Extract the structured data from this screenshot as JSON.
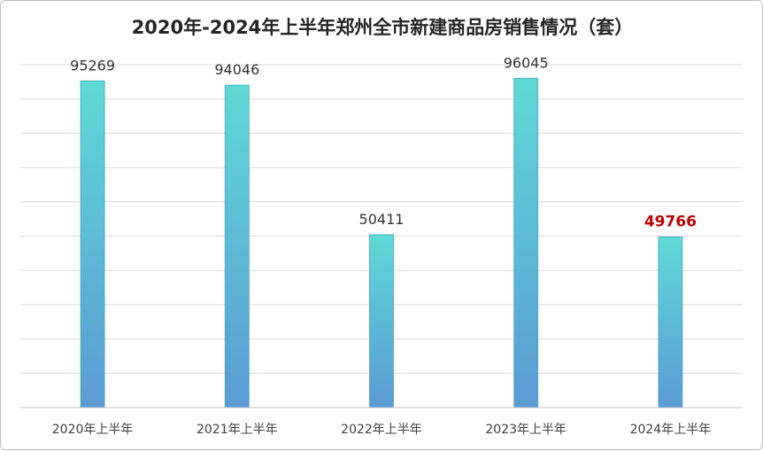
{
  "chart_data": {
    "type": "bar",
    "title": "2020年-2024年上半年郑州全市新建商品房销售情况（套）",
    "categories": [
      "2020年上半年",
      "2021年上半年",
      "2022年上半年",
      "2023年上半年",
      "2024年上半年"
    ],
    "values": [
      95269,
      94046,
      50411,
      96045,
      49766
    ],
    "data_labels": [
      "95269",
      "94046",
      "50411",
      "96045",
      "49766"
    ],
    "highlight_index": 4,
    "ylim": [
      0,
      100000
    ],
    "grid": true,
    "legend": "none",
    "colors": {
      "bar_top": "#5fd9d6",
      "bar_bottom": "#5b9bd5",
      "bar_stroke": "#3fa9c4",
      "gridline": "#d9d9d9",
      "axis": "#bfbfbf",
      "highlight_label": "#c00000",
      "label": "#333333"
    }
  }
}
